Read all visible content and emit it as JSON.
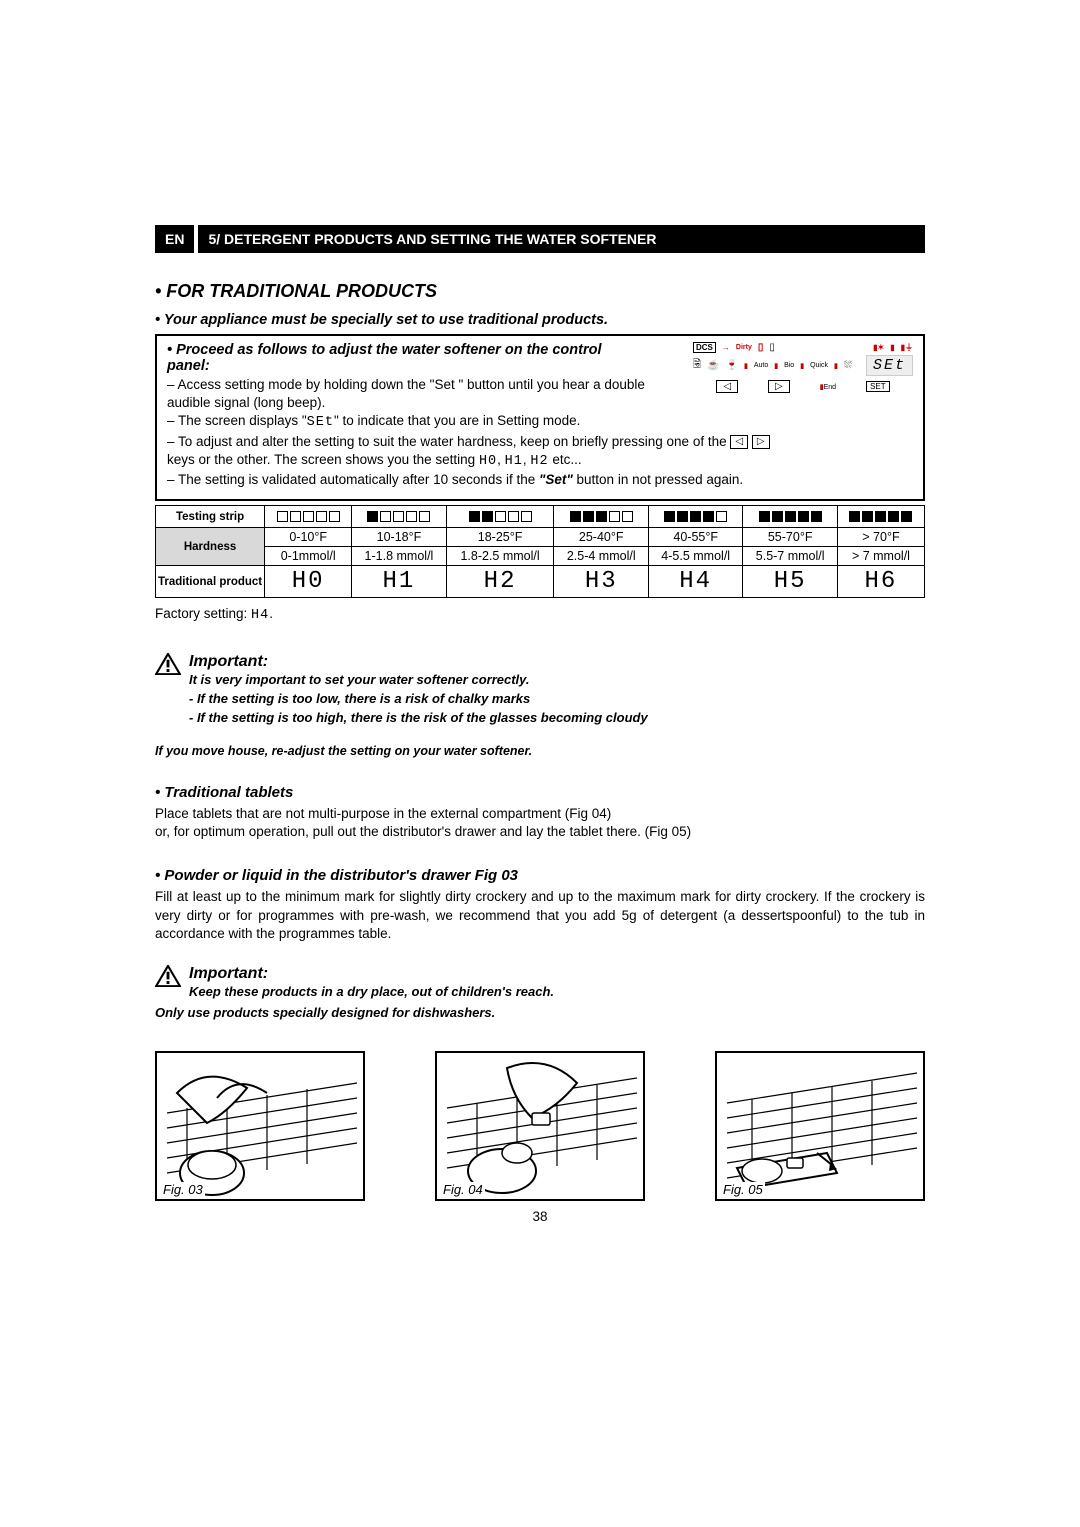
{
  "header": {
    "lang": "EN",
    "title": "5/ DETERGENT PRODUCTS AND SETTING THE WATER SOFTENER"
  },
  "section_title": "• FOR TRADITIONAL PRODUCTS",
  "intro_bullet": "• Your appliance must be specially set to use traditional products.",
  "box": {
    "heading": "• Proceed as follows to adjust the water softener on the control panel:",
    "line1a": "– Access setting mode by holding down the \"Set \" button until you hear a double audible signal (long beep).",
    "line2a": "– The screen displays \"",
    "line2b": "\" to indicate that you are in Setting mode.",
    "line3a": "– To adjust and alter the setting to suit the water hardness, keep on briefly pressing one of the ",
    "line3b": " keys or the other. The screen shows you the setting ",
    "line3c": " etc...",
    "line4a": "– The setting is validated automatically after 10 seconds if the ",
    "line4_set": "\"Set\"",
    "line4b": " button in not pressed again.",
    "seg_set": "SEt",
    "seg_h0": "H0",
    "seg_h1": "H1",
    "seg_h2": "H2"
  },
  "panel": {
    "dcs": "DCS",
    "dirty": "Dirty",
    "auto": "Auto",
    "bio": "Bio",
    "quick": "Quick",
    "end": "End",
    "set_display": "SEt",
    "set_btn": "SET"
  },
  "table": {
    "row_labels": {
      "strip": "Testing strip",
      "hardness": "Hardness",
      "product": "Traditional product"
    },
    "columns": [
      {
        "filled": 0,
        "f": "0-10°F",
        "mmol": "0-1mmol/l",
        "code": "H0"
      },
      {
        "filled": 1,
        "f": "10-18°F",
        "mmol": "1-1.8 mmol/l",
        "code": "H1"
      },
      {
        "filled": 2,
        "f": "18-25°F",
        "mmol": "1.8-2.5 mmol/l",
        "code": "H2"
      },
      {
        "filled": 3,
        "f": "25-40°F",
        "mmol": "2.5-4 mmol/l",
        "code": "H3"
      },
      {
        "filled": 4,
        "f": "40-55°F",
        "mmol": "4-5.5 mmol/l",
        "code": "H4"
      },
      {
        "filled": 5,
        "f": "55-70°F",
        "mmol": "5.5-7 mmol/l",
        "code": "H5"
      },
      {
        "filled": 5,
        "f": "> 70°F",
        "mmol": "> 7 mmol/l",
        "code": "H6"
      }
    ],
    "strip_total": 5
  },
  "factory_a": "Factory setting: ",
  "factory_code": "H4",
  "factory_b": ".",
  "important1": {
    "title": "Important:",
    "lines": [
      "It is very important to set your water softener correctly.",
      "- If the setting is too low, there is a risk of chalky marks",
      "- If the setting is too high, there is the risk of the glasses becoming cloudy"
    ],
    "after": "If you move house, re-adjust the setting on your water softener."
  },
  "tablets": {
    "heading": "• Traditional tablets",
    "body": "Place tablets that are not multi-purpose in the external compartment (Fig 04)\nor, for optimum operation, pull out the distributor's drawer and lay the tablet there. (Fig 05)"
  },
  "powder": {
    "heading": "• Powder or liquid in the distributor's drawer Fig 03",
    "body": "Fill at least up to the minimum mark for slightly dirty crockery and up to the maximum mark for dirty crockery. If the crockery is very dirty or for programmes with pre-wash, we recommend that you add 5g of detergent (a dessertspoonful) to the tub in accordance with the programmes table."
  },
  "important2": {
    "title": "Important:",
    "lines": [
      "Keep these products in a dry place, out of children's reach.",
      "Only use products specially designed for dishwashers."
    ]
  },
  "figs": {
    "f1": "Fig. 03",
    "f2": "Fig. 04",
    "f3": "Fig. 05"
  },
  "page_number": "38"
}
